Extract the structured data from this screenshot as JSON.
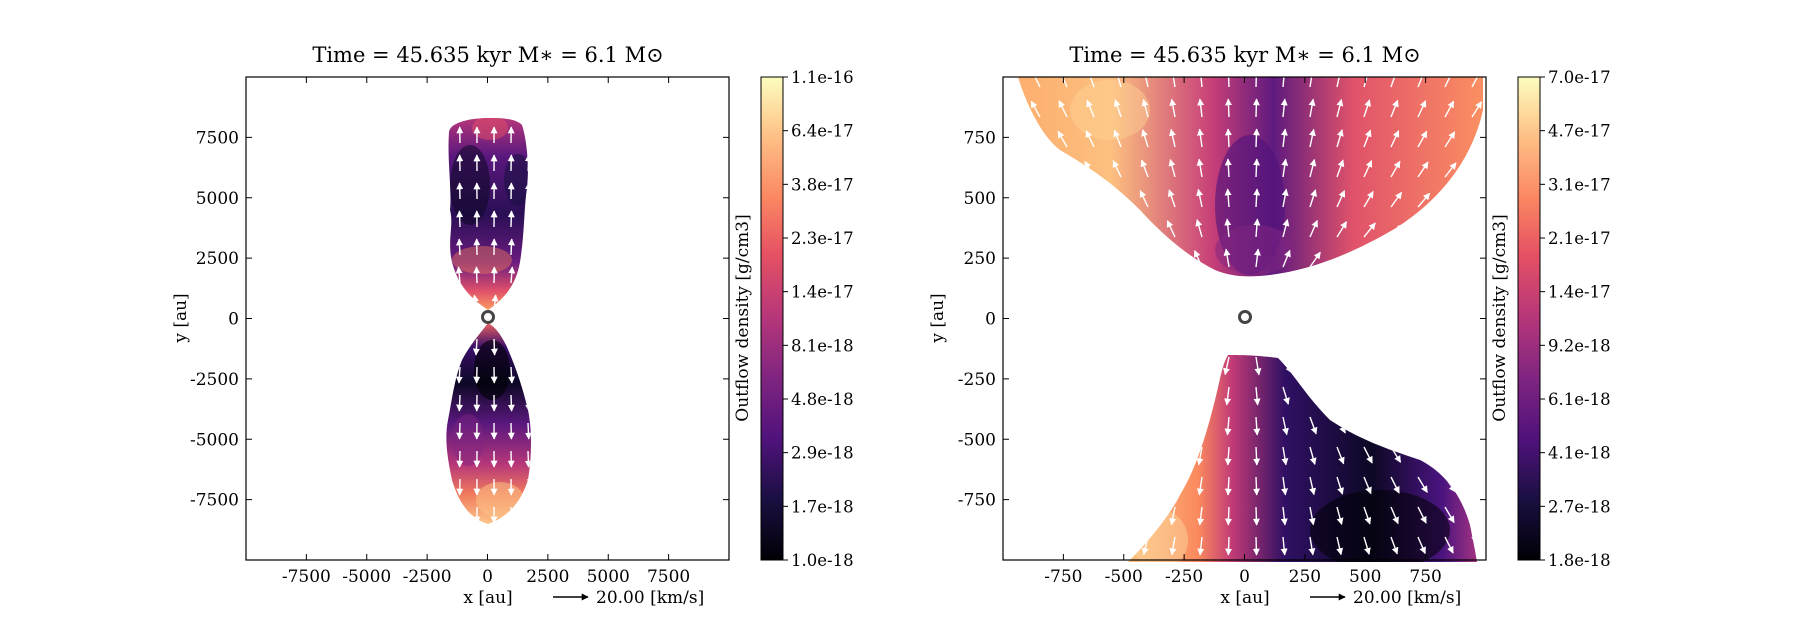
{
  "colors": {
    "min": "#000004",
    "max": "#fcfdbf",
    "colormap": "magma",
    "vector": "#ffffff",
    "star": "#444444"
  },
  "chart_data": [
    {
      "type": "heatmap",
      "title": "Time = 45.635 kyr    M∗ = 6.1 M⊙",
      "xlabel": "x [au]",
      "ylabel": "y [au]",
      "xlim": [
        -10000,
        10000
      ],
      "ylim": [
        -10000,
        10000
      ],
      "xticks": [
        -7500,
        -5000,
        -2500,
        0,
        2500,
        5000,
        7500
      ],
      "yticks": [
        -7500,
        -5000,
        -2500,
        0,
        2500,
        5000,
        7500
      ],
      "xtick_labels": [
        "-7500",
        "-5000",
        "-2500",
        "0",
        "2500",
        "5000",
        "7500"
      ],
      "ytick_labels": [
        "-7500",
        "-5000",
        "-2500",
        "0",
        "2500",
        "5000",
        "7500"
      ],
      "quiver_key": "20.00 [km/s]",
      "star_position": [
        0,
        0
      ],
      "colorbar": {
        "label": "Outflow density [g/cm3]",
        "scale": "log",
        "ticks": [
          "1.1e-16",
          "6.4e-17",
          "3.8e-17",
          "2.3e-17",
          "1.4e-17",
          "8.1e-18",
          "4.8e-18",
          "2.9e-18",
          "1.7e-18",
          "1.0e-18"
        ]
      },
      "lobes": [
        {
          "name": "",
          "extent": {
            "x": [
              -1600,
              1600
            ],
            "y": [
              0,
              8200
            ]
          }
        },
        {
          "name": "",
          "extent": {
            "x": [
              -1900,
              1800
            ],
            "y": [
              -8500,
              0
            ]
          }
        }
      ]
    },
    {
      "type": "heatmap",
      "title": "Time = 45.635 kyr    M∗ = 6.1 M⊙",
      "xlabel": "x [au]",
      "ylabel": "y [au]",
      "xlim": [
        -1000,
        1000
      ],
      "ylim": [
        -1000,
        1000
      ],
      "xticks": [
        -750,
        -500,
        -250,
        0,
        250,
        500,
        750
      ],
      "yticks": [
        -750,
        -500,
        -250,
        0,
        250,
        500,
        750
      ],
      "xtick_labels": [
        "-750",
        "-500",
        "-250",
        "0",
        "250",
        "500",
        "750"
      ],
      "ytick_labels": [
        "-750",
        "-500",
        "-250",
        "0",
        "250",
        "500",
        "750"
      ],
      "quiver_key": "20.00 [km/s]",
      "star_position": [
        0,
        0
      ],
      "colorbar": {
        "label": "Outflow density [g/cm3]",
        "scale": "log",
        "ticks": [
          "7.0e-17",
          "4.7e-17",
          "3.1e-17",
          "2.1e-17",
          "1.4e-17",
          "9.2e-18",
          "6.1e-18",
          "4.1e-18",
          "2.7e-18",
          "1.8e-18"
        ]
      },
      "lobes": [
        {
          "name": "",
          "extent": {
            "x": [
              -1000,
              1000
            ],
            "y": [
              170,
              1000
            ]
          }
        },
        {
          "name": "",
          "extent": {
            "x": [
              -1000,
              930
            ],
            "y": [
              -1000,
              -150
            ]
          }
        }
      ]
    }
  ]
}
